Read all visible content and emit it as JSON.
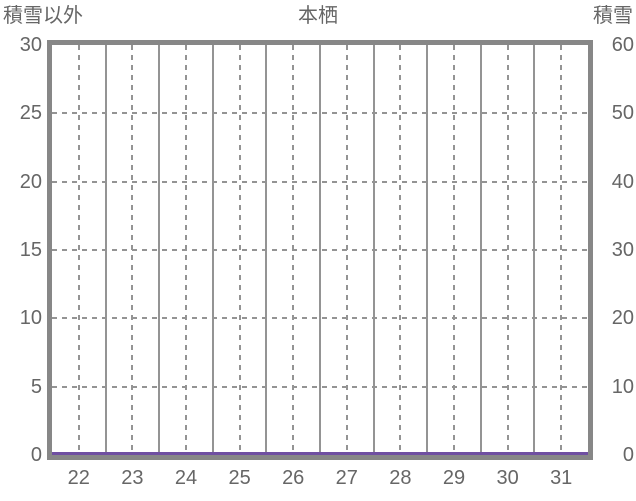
{
  "header": {
    "left_axis_title": "積雪以外",
    "chart_title": "本栖",
    "right_axis_title": "積雪"
  },
  "chart_data": {
    "type": "line",
    "title": "本栖",
    "x": {
      "categories": [
        "22",
        "23",
        "24",
        "25",
        "26",
        "27",
        "28",
        "29",
        "30",
        "31"
      ]
    },
    "left_axis": {
      "label": "積雪以外",
      "min": 0,
      "max": 30,
      "tick_step": 5,
      "ticks": [
        "30",
        "25",
        "20",
        "15",
        "10",
        "5",
        "0"
      ]
    },
    "right_axis": {
      "label": "積雪",
      "min": 0,
      "max": 60,
      "tick_step": 10,
      "ticks": [
        "60",
        "50",
        "40",
        "30",
        "20",
        "10",
        "0"
      ]
    },
    "series": [
      {
        "name": "積雪",
        "color": "#6f4fa1",
        "values": [
          0,
          0,
          0,
          0,
          0,
          0,
          0,
          0,
          0,
          0
        ]
      }
    ],
    "layout": {
      "grid_vertical_solid": "day-boundaries",
      "grid_vertical_dashed": "day-centers",
      "grid_horizontal": "dashed",
      "legend": "none"
    },
    "colors": {
      "frame": "#878787",
      "grid": "#949494",
      "text": "#666666",
      "line": "#6f4fa1",
      "background": "#ffffff"
    }
  }
}
